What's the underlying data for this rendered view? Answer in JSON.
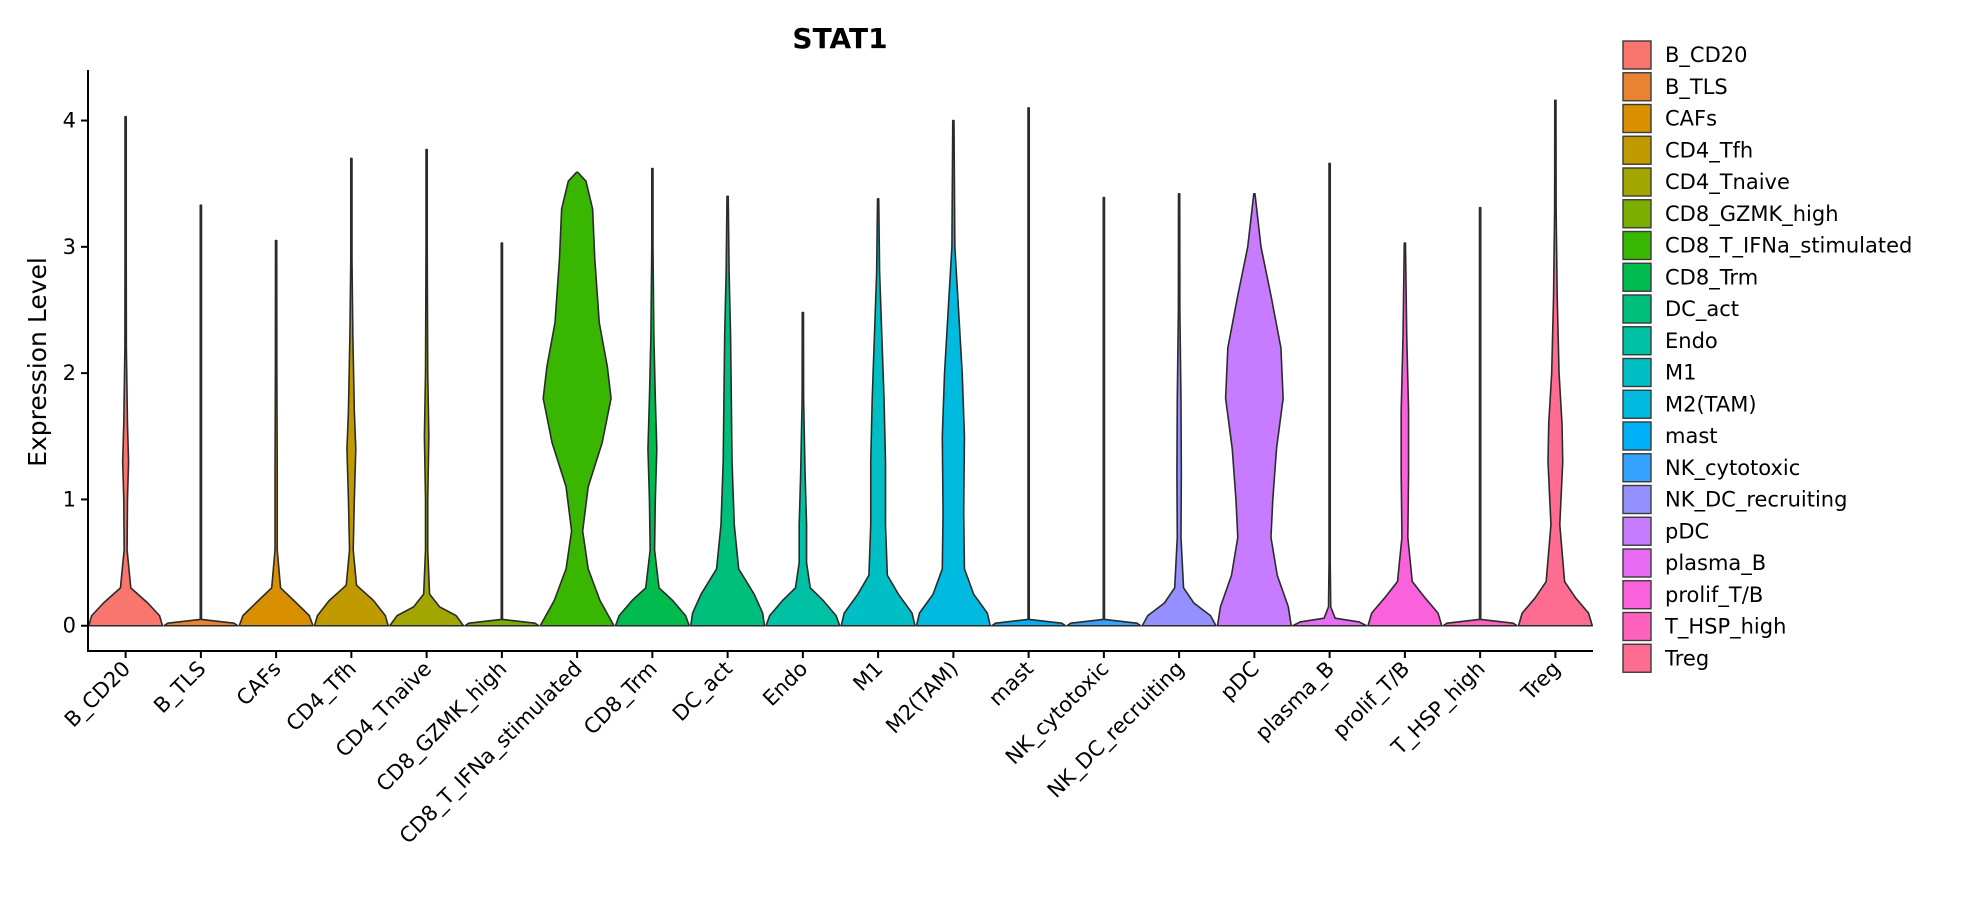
{
  "chart_data": {
    "type": "violin",
    "title": "STAT1",
    "xlabel": "",
    "ylabel": "Expression Level",
    "ylim": [
      -0.2,
      4.4
    ],
    "yticks": [
      0,
      1,
      2,
      3,
      4
    ],
    "categories": [
      "B_CD20",
      "B_TLS",
      "CAFs",
      "CD4_Tfh",
      "CD4_Tnaive",
      "CD8_GZMK_high",
      "CD8_T_IFNa_stimulated",
      "CD8_Trm",
      "DC_act",
      "Endo",
      "M1",
      "M2(TAM)",
      "mast",
      "NK_cytotoxic",
      "NK_DC_recruiting",
      "pDC",
      "plasma_B",
      "prolif_T/B",
      "T_HSP_high",
      "Treg"
    ],
    "colors": [
      "#F8766D",
      "#EA8331",
      "#D89000",
      "#C09B00",
      "#A3A500",
      "#7CAE00",
      "#39B600",
      "#00BB4E",
      "#00BF7D",
      "#00C1A3",
      "#00BFC4",
      "#00BAE0",
      "#00B0F6",
      "#35A2FF",
      "#9590FF",
      "#C77CFF",
      "#E76BF3",
      "#FA62DB",
      "#FF62BC",
      "#FF6C91"
    ],
    "series": [
      {
        "name": "B_CD20",
        "max": 4.03,
        "profile": [
          [
            0,
            1.0
          ],
          [
            0.08,
            0.92
          ],
          [
            0.18,
            0.6
          ],
          [
            0.3,
            0.14
          ],
          [
            0.6,
            0.04
          ],
          [
            1.0,
            0.05
          ],
          [
            1.3,
            0.08
          ],
          [
            1.6,
            0.05
          ],
          [
            2.2,
            0.02
          ],
          [
            3.0,
            0.008
          ],
          [
            4.03,
            0.0
          ]
        ]
      },
      {
        "name": "B_TLS",
        "max": 3.33,
        "profile": [
          [
            0,
            1.0
          ],
          [
            0.02,
            0.9
          ],
          [
            0.05,
            0.0
          ],
          [
            3.33,
            0.0
          ]
        ]
      },
      {
        "name": "CAFs",
        "max": 3.05,
        "profile": [
          [
            0,
            1.0
          ],
          [
            0.08,
            0.9
          ],
          [
            0.18,
            0.55
          ],
          [
            0.3,
            0.12
          ],
          [
            0.6,
            0.03
          ],
          [
            1.2,
            0.03
          ],
          [
            2.0,
            0.02
          ],
          [
            3.05,
            0.0
          ]
        ]
      },
      {
        "name": "CD4_Tfh",
        "max": 3.7,
        "profile": [
          [
            0,
            1.0
          ],
          [
            0.08,
            0.92
          ],
          [
            0.2,
            0.6
          ],
          [
            0.32,
            0.14
          ],
          [
            0.6,
            0.05
          ],
          [
            1.0,
            0.08
          ],
          [
            1.4,
            0.12
          ],
          [
            1.7,
            0.08
          ],
          [
            2.3,
            0.04
          ],
          [
            2.9,
            0.01
          ],
          [
            3.7,
            0.0
          ]
        ]
      },
      {
        "name": "CD4_Tnaive",
        "max": 3.77,
        "profile": [
          [
            0,
            1.0
          ],
          [
            0.08,
            0.8
          ],
          [
            0.15,
            0.35
          ],
          [
            0.25,
            0.08
          ],
          [
            0.6,
            0.03
          ],
          [
            1.0,
            0.03
          ],
          [
            1.5,
            0.06
          ],
          [
            2.0,
            0.03
          ],
          [
            3.0,
            0.01
          ],
          [
            3.77,
            0.0
          ]
        ]
      },
      {
        "name": "CD8_GZMK_high",
        "max": 3.03,
        "profile": [
          [
            0,
            1.0
          ],
          [
            0.02,
            0.9
          ],
          [
            0.05,
            0.0
          ],
          [
            3.03,
            0.0
          ]
        ]
      },
      {
        "name": "CD8_T_IFNa_stimulated",
        "max": 3.59,
        "profile": [
          [
            0,
            1.0
          ],
          [
            0.2,
            0.62
          ],
          [
            0.45,
            0.3
          ],
          [
            0.75,
            0.15
          ],
          [
            1.1,
            0.3
          ],
          [
            1.45,
            0.68
          ],
          [
            1.8,
            0.92
          ],
          [
            2.05,
            0.82
          ],
          [
            2.4,
            0.6
          ],
          [
            2.9,
            0.48
          ],
          [
            3.3,
            0.42
          ],
          [
            3.52,
            0.24
          ],
          [
            3.59,
            0.0
          ]
        ]
      },
      {
        "name": "CD8_Trm",
        "max": 3.62,
        "profile": [
          [
            0,
            1.0
          ],
          [
            0.08,
            0.9
          ],
          [
            0.2,
            0.55
          ],
          [
            0.3,
            0.18
          ],
          [
            0.6,
            0.06
          ],
          [
            1.0,
            0.08
          ],
          [
            1.4,
            0.12
          ],
          [
            1.8,
            0.08
          ],
          [
            2.3,
            0.04
          ],
          [
            3.0,
            0.01
          ],
          [
            3.62,
            0.0
          ]
        ]
      },
      {
        "name": "DC_act",
        "max": 3.4,
        "profile": [
          [
            0,
            1.0
          ],
          [
            0.1,
            0.95
          ],
          [
            0.25,
            0.72
          ],
          [
            0.45,
            0.3
          ],
          [
            0.8,
            0.18
          ],
          [
            1.3,
            0.12
          ],
          [
            1.8,
            0.1
          ],
          [
            2.3,
            0.08
          ],
          [
            2.8,
            0.04
          ],
          [
            3.4,
            0.0
          ]
        ]
      },
      {
        "name": "Endo",
        "max": 2.48,
        "profile": [
          [
            0,
            1.0
          ],
          [
            0.08,
            0.9
          ],
          [
            0.2,
            0.55
          ],
          [
            0.3,
            0.2
          ],
          [
            0.5,
            0.1
          ],
          [
            0.8,
            0.1
          ],
          [
            1.2,
            0.06
          ],
          [
            1.8,
            0.02
          ],
          [
            2.48,
            0.0
          ]
        ]
      },
      {
        "name": "M1",
        "max": 3.38,
        "profile": [
          [
            0,
            1.0
          ],
          [
            0.1,
            0.92
          ],
          [
            0.25,
            0.55
          ],
          [
            0.4,
            0.25
          ],
          [
            0.8,
            0.2
          ],
          [
            1.3,
            0.2
          ],
          [
            1.8,
            0.16
          ],
          [
            2.3,
            0.1
          ],
          [
            2.8,
            0.04
          ],
          [
            3.38,
            0.0
          ]
        ]
      },
      {
        "name": "M2(TAM)",
        "max": 4.0,
        "profile": [
          [
            0,
            1.0
          ],
          [
            0.1,
            0.92
          ],
          [
            0.25,
            0.55
          ],
          [
            0.45,
            0.3
          ],
          [
            0.9,
            0.28
          ],
          [
            1.5,
            0.3
          ],
          [
            2.0,
            0.24
          ],
          [
            2.5,
            0.14
          ],
          [
            3.0,
            0.04
          ],
          [
            4.0,
            0.0
          ]
        ]
      },
      {
        "name": "mast",
        "max": 4.1,
        "profile": [
          [
            0,
            1.0
          ],
          [
            0.02,
            0.9
          ],
          [
            0.05,
            0.0
          ],
          [
            4.1,
            0.0
          ]
        ]
      },
      {
        "name": "NK_cytotoxic",
        "max": 3.39,
        "profile": [
          [
            0,
            1.0
          ],
          [
            0.02,
            0.9
          ],
          [
            0.05,
            0.0
          ],
          [
            3.39,
            0.0
          ]
        ]
      },
      {
        "name": "NK_DC_recruiting",
        "max": 3.42,
        "profile": [
          [
            0,
            1.0
          ],
          [
            0.08,
            0.85
          ],
          [
            0.18,
            0.4
          ],
          [
            0.3,
            0.12
          ],
          [
            0.7,
            0.05
          ],
          [
            1.2,
            0.06
          ],
          [
            1.8,
            0.05
          ],
          [
            2.5,
            0.02
          ],
          [
            3.42,
            0.0
          ]
        ]
      },
      {
        "name": "pDC",
        "max": 3.42,
        "profile": [
          [
            0,
            1.0
          ],
          [
            0.15,
            0.92
          ],
          [
            0.4,
            0.62
          ],
          [
            0.7,
            0.45
          ],
          [
            1.0,
            0.5
          ],
          [
            1.4,
            0.6
          ],
          [
            1.8,
            0.78
          ],
          [
            2.2,
            0.72
          ],
          [
            2.6,
            0.46
          ],
          [
            3.0,
            0.18
          ],
          [
            3.42,
            0.0
          ]
        ]
      },
      {
        "name": "plasma_B",
        "max": 3.66,
        "profile": [
          [
            0,
            1.0
          ],
          [
            0.03,
            0.8
          ],
          [
            0.06,
            0.15
          ],
          [
            0.15,
            0.03
          ],
          [
            0.5,
            0.01
          ],
          [
            3.66,
            0.0
          ]
        ]
      },
      {
        "name": "prolif_T/B",
        "max": 3.03,
        "profile": [
          [
            0,
            1.0
          ],
          [
            0.1,
            0.9
          ],
          [
            0.22,
            0.55
          ],
          [
            0.35,
            0.2
          ],
          [
            0.7,
            0.08
          ],
          [
            1.2,
            0.1
          ],
          [
            1.7,
            0.1
          ],
          [
            2.3,
            0.05
          ],
          [
            3.03,
            0.0
          ]
        ]
      },
      {
        "name": "T_HSP_high",
        "max": 3.31,
        "profile": [
          [
            0,
            1.0
          ],
          [
            0.02,
            0.9
          ],
          [
            0.05,
            0.0
          ],
          [
            3.31,
            0.0
          ]
        ]
      },
      {
        "name": "Treg",
        "max": 4.16,
        "profile": [
          [
            0,
            1.0
          ],
          [
            0.1,
            0.9
          ],
          [
            0.22,
            0.55
          ],
          [
            0.35,
            0.25
          ],
          [
            0.8,
            0.12
          ],
          [
            1.3,
            0.2
          ],
          [
            1.6,
            0.18
          ],
          [
            2.0,
            0.1
          ],
          [
            2.6,
            0.05
          ],
          [
            3.3,
            0.02
          ],
          [
            4.16,
            0.0
          ]
        ]
      }
    ],
    "legend": {
      "position": "right",
      "entries": [
        "B_CD20",
        "B_TLS",
        "CAFs",
        "CD4_Tfh",
        "CD4_Tnaive",
        "CD8_GZMK_high",
        "CD8_T_IFNa_stimulated",
        "CD8_Trm",
        "DC_act",
        "Endo",
        "M1",
        "M2(TAM)",
        "mast",
        "NK_cytotoxic",
        "NK_DC_recruiting",
        "pDC",
        "plasma_B",
        "prolif_T/B",
        "T_HSP_high",
        "Treg"
      ]
    },
    "grid": false
  }
}
